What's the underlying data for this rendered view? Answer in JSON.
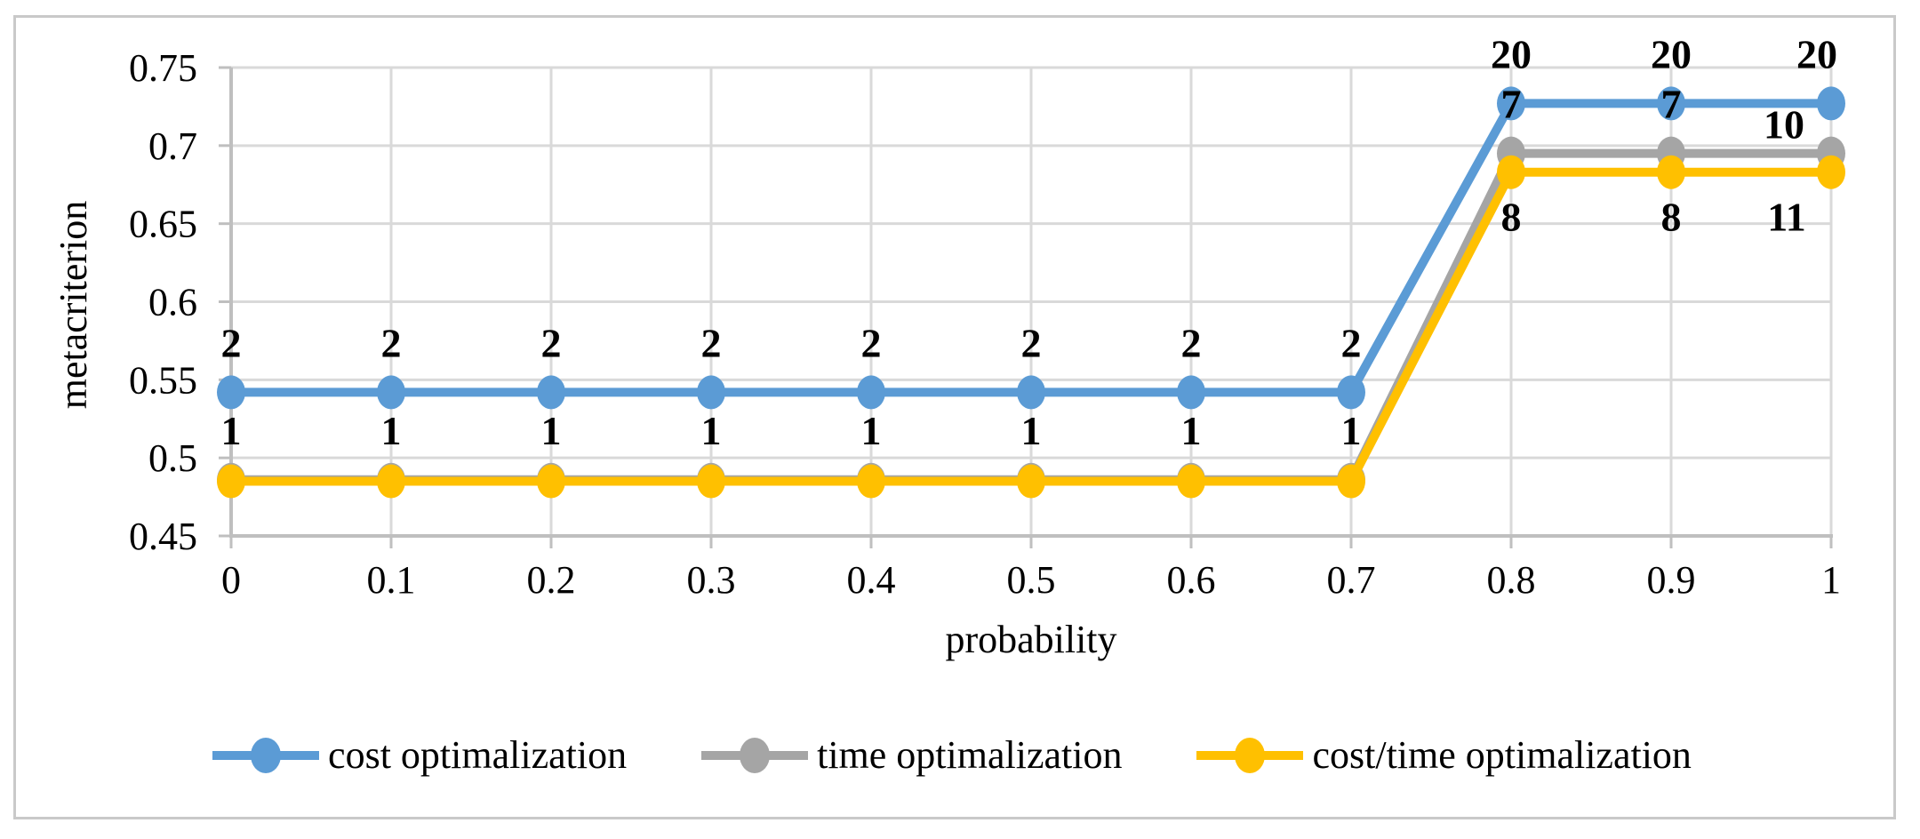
{
  "figure": {
    "background_color": "#FFFFFF",
    "border_color": "#C9C9C9"
  },
  "axes": {
    "y_title": "metacriterion",
    "x_title": "probability"
  },
  "chart_data": {
    "type": "line",
    "title": "",
    "xlabel": "probability",
    "ylabel": "metacriterion",
    "x": [
      0,
      0.1,
      0.2,
      0.3,
      0.4,
      0.5,
      0.6,
      0.7,
      0.8,
      0.9,
      1
    ],
    "x_tick_labels": [
      "0",
      "0.1",
      "0.2",
      "0.3",
      "0.4",
      "0.5",
      "0.6",
      "0.7",
      "0.8",
      "0.9",
      "1"
    ],
    "y_tick_labels": [
      "0.45",
      "0.5",
      "0.55",
      "0.6",
      "0.65",
      "0.7",
      "0.75"
    ],
    "xlim": [
      0,
      1
    ],
    "ylim": [
      0.45,
      0.75
    ],
    "y_tick_step": 0.05,
    "grid": true,
    "grid_color": "#D9D9D9",
    "axis_color": "#BFBFBF",
    "label_color": "#000000",
    "legend_position": "bottom",
    "series": [
      {
        "name": "cost optimalization",
        "color": "#5B9BD5",
        "values": [
          0.542,
          0.542,
          0.542,
          0.542,
          0.542,
          0.542,
          0.542,
          0.542,
          0.727,
          0.727,
          0.727
        ],
        "point_labels": [
          "2",
          "2",
          "2",
          "2",
          "2",
          "2",
          "2",
          "2",
          "20",
          "20",
          "20"
        ],
        "label_position": "above",
        "label_overrides": {
          "10": {
            "dx": -16,
            "dy": -40
          }
        }
      },
      {
        "name": "time optimalization",
        "color": "#A5A5A5",
        "values": [
          0.486,
          0.486,
          0.486,
          0.486,
          0.486,
          0.486,
          0.486,
          0.486,
          0.695,
          0.695,
          0.695
        ],
        "point_labels": [
          "1",
          "1",
          "1",
          "1",
          "1",
          "1",
          "1",
          "1",
          "7",
          "7",
          "10"
        ],
        "label_position": "above",
        "label_overrides": {
          "10": {
            "dx": -53,
            "dy": -17
          }
        }
      },
      {
        "name": "cost/time optimalization",
        "color": "#FFC000",
        "values": [
          0.485,
          0.485,
          0.485,
          0.485,
          0.485,
          0.485,
          0.485,
          0.485,
          0.683,
          0.683,
          0.683
        ],
        "point_labels": [
          "",
          "",
          "",
          "",
          "",
          "",
          "",
          "",
          "8",
          "8",
          "11"
        ],
        "label_position": "below",
        "label_overrides": {
          "10": {
            "dx": -50,
            "dy": 66
          }
        }
      }
    ]
  }
}
